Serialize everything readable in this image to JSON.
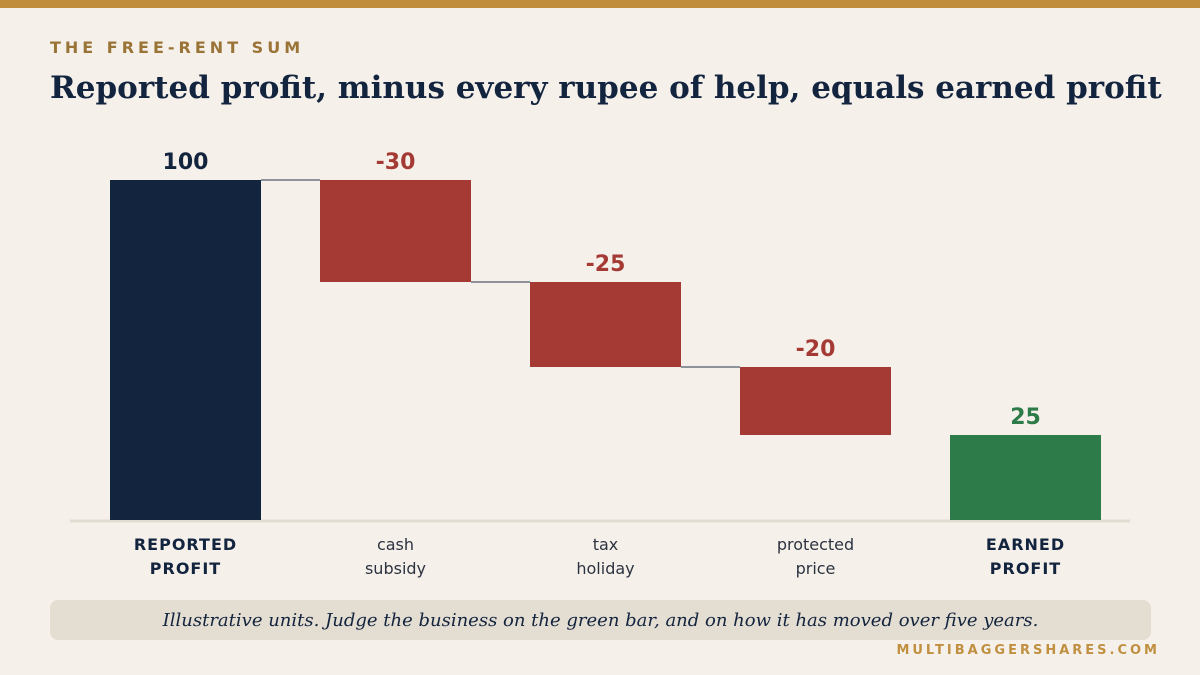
{
  "kicker": "THE FREE-RENT SUM",
  "title": "Reported profit, minus every rupee of help, equals earned profit",
  "footnote": "Illustrative units. Judge the business on the green bar, and on how it has moved over five years.",
  "source": "MULTIBAGGERSHARES.COM",
  "colors": {
    "total": "#13243f",
    "decrease": "#a53a35",
    "result": "#2e7b4a",
    "connector": "#6c7480",
    "baseline": "#e2dbd0",
    "accent": "#bf8d3c"
  },
  "chart_data": {
    "type": "bar",
    "subtype": "waterfall",
    "categories": [
      [
        "REPORTED",
        "PROFIT"
      ],
      [
        "cash",
        "subsidy"
      ],
      [
        "tax",
        "holiday"
      ],
      [
        "protected",
        "price"
      ],
      [
        "EARNED",
        "PROFIT"
      ]
    ],
    "values": [
      100,
      -30,
      -25,
      -20,
      25
    ],
    "value_labels": [
      "100",
      "-30",
      "-25",
      "-20",
      "25"
    ],
    "kinds": [
      "total",
      "decrease",
      "decrease",
      "decrease",
      "result"
    ],
    "ylim": [
      0,
      100
    ],
    "grid": false,
    "legend": "none"
  }
}
